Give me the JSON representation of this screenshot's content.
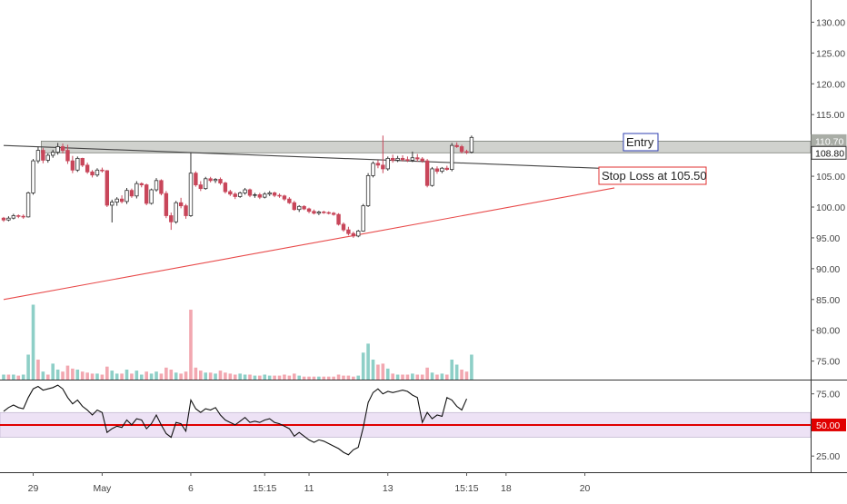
{
  "chart_data": {
    "type": "candlestick",
    "price_axis": {
      "ticks": [
        "130.00",
        "125.00",
        "120.00",
        "115.00",
        "110.00",
        "105.00",
        "100.00",
        "95.00",
        "90.00",
        "85.00",
        "80.00",
        "75.00"
      ],
      "tick_values": [
        130,
        125,
        120,
        115,
        110,
        105,
        100,
        95,
        90,
        85,
        80,
        75
      ],
      "range": [
        72.0,
        133.6
      ]
    },
    "time_axis": {
      "labels": [
        {
          "text": "29",
          "idx": 6
        },
        {
          "text": "May",
          "idx": 20
        },
        {
          "text": "6",
          "idx": 38
        },
        {
          "text": "15:15",
          "idx": 53
        },
        {
          "text": "11",
          "idx": 62
        },
        {
          "text": "13",
          "idx": 78
        },
        {
          "text": "15:15",
          "idx": 94
        },
        {
          "text": "18",
          "idx": 102
        },
        {
          "text": "20",
          "idx": 118
        }
      ]
    },
    "price_badges": [
      {
        "label": "110.70",
        "value": 110.7,
        "style": "gray"
      },
      {
        "label": "108.80",
        "value": 108.8,
        "style": "white"
      }
    ],
    "zone": {
      "low": 108.8,
      "high": 110.7
    },
    "annotations": [
      {
        "text": "Entry",
        "border_color": "#2f3fb0"
      },
      {
        "text": "Stop Loss at 105.50",
        "border_color": "#e03030"
      }
    ],
    "trendlines": [
      {
        "name": "resistance",
        "points": [
          [
            0,
            110.0
          ],
          [
            124,
            106.2
          ]
        ],
        "color": "#444444"
      },
      {
        "name": "support",
        "points": [
          [
            0,
            85.0
          ],
          [
            124,
            103.1
          ]
        ],
        "color": "#e84a4a"
      }
    ],
    "colors": {
      "up": "#ffffff",
      "down": "#c8465a",
      "up_volume": "#8ecfc7",
      "down_volume": "#f2a7b0",
      "rsi_band": "#ede2f5",
      "rsi_mid": "#e00000"
    },
    "candles": [
      [
        98.2,
        98.4,
        97.6,
        97.9
      ],
      [
        97.9,
        98.5,
        97.7,
        98.2
      ],
      [
        98.2,
        98.9,
        98.0,
        98.6
      ],
      [
        98.6,
        98.8,
        98.2,
        98.5
      ],
      [
        98.5,
        98.8,
        98.1,
        98.4
      ],
      [
        98.4,
        102.5,
        98.3,
        102.3
      ],
      [
        102.3,
        107.8,
        102.0,
        107.5
      ],
      [
        107.5,
        109.8,
        107.1,
        109.2
      ],
      [
        109.2,
        109.6,
        107.1,
        107.6
      ],
      [
        107.6,
        108.7,
        107.2,
        108.4
      ],
      [
        108.4,
        109.3,
        108.0,
        108.9
      ],
      [
        108.9,
        110.4,
        108.5,
        109.8
      ],
      [
        109.8,
        110.3,
        108.7,
        109.2
      ],
      [
        109.2,
        110.1,
        107.0,
        107.5
      ],
      [
        107.5,
        108.3,
        105.5,
        106.0
      ],
      [
        106.0,
        108.2,
        105.7,
        107.9
      ],
      [
        107.9,
        108.0,
        106.5,
        106.8
      ],
      [
        106.8,
        107.2,
        105.4,
        105.7
      ],
      [
        105.7,
        106.0,
        104.8,
        105.2
      ],
      [
        105.2,
        106.3,
        104.9,
        106.0
      ],
      [
        106.0,
        106.4,
        105.6,
        105.9
      ],
      [
        105.9,
        106.0,
        100.0,
        100.3
      ],
      [
        100.3,
        101.2,
        97.5,
        100.8
      ],
      [
        100.8,
        101.6,
        100.2,
        101.3
      ],
      [
        101.3,
        101.9,
        100.6,
        100.9
      ],
      [
        100.9,
        103.1,
        100.5,
        102.7
      ],
      [
        102.7,
        103.0,
        101.5,
        101.8
      ],
      [
        101.8,
        104.2,
        101.4,
        103.8
      ],
      [
        103.8,
        104.0,
        103.2,
        103.6
      ],
      [
        103.6,
        103.8,
        100.3,
        100.6
      ],
      [
        100.6,
        103.0,
        100.4,
        102.8
      ],
      [
        102.8,
        104.7,
        102.5,
        104.3
      ],
      [
        104.3,
        104.5,
        101.9,
        102.2
      ],
      [
        102.2,
        102.6,
        98.2,
        98.6
      ],
      [
        98.6,
        99.1,
        96.3,
        97.6
      ],
      [
        97.6,
        101.0,
        97.3,
        100.7
      ],
      [
        100.7,
        101.5,
        99.8,
        100.2
      ],
      [
        100.2,
        100.5,
        98.1,
        98.6
      ],
      [
        98.6,
        108.8,
        98.4,
        105.5
      ],
      [
        105.5,
        105.8,
        103.3,
        103.6
      ],
      [
        103.6,
        104.2,
        102.6,
        103.0
      ],
      [
        103.0,
        104.9,
        102.8,
        104.6
      ],
      [
        104.6,
        104.9,
        104.0,
        104.3
      ],
      [
        104.3,
        104.7,
        103.9,
        104.5
      ],
      [
        104.5,
        104.8,
        103.6,
        103.9
      ],
      [
        103.9,
        104.1,
        102.2,
        102.5
      ],
      [
        102.5,
        102.8,
        101.8,
        102.1
      ],
      [
        102.1,
        102.4,
        101.3,
        101.7
      ],
      [
        101.7,
        102.5,
        101.5,
        102.3
      ],
      [
        102.3,
        103.1,
        102.0,
        102.8
      ],
      [
        102.8,
        103.0,
        101.6,
        101.9
      ],
      [
        101.9,
        102.3,
        101.5,
        102.0
      ],
      [
        102.0,
        102.3,
        101.3,
        101.6
      ],
      [
        101.6,
        102.4,
        101.4,
        102.1
      ],
      [
        102.1,
        102.6,
        101.8,
        102.3
      ],
      [
        102.3,
        102.5,
        101.6,
        101.9
      ],
      [
        101.9,
        102.2,
        101.5,
        101.8
      ],
      [
        101.8,
        102.0,
        101.0,
        101.3
      ],
      [
        101.3,
        101.6,
        100.5,
        100.7
      ],
      [
        100.7,
        101.0,
        99.4,
        99.6
      ],
      [
        99.6,
        100.3,
        99.2,
        100.1
      ],
      [
        100.1,
        100.3,
        99.5,
        99.7
      ],
      [
        99.7,
        99.9,
        99.0,
        99.3
      ],
      [
        99.3,
        99.6,
        98.8,
        99.0
      ],
      [
        99.0,
        99.4,
        98.7,
        99.2
      ],
      [
        99.2,
        99.4,
        98.9,
        99.1
      ],
      [
        99.1,
        99.3,
        98.8,
        99.0
      ],
      [
        99.0,
        99.2,
        98.6,
        98.8
      ],
      [
        98.8,
        99.0,
        97.0,
        97.2
      ],
      [
        97.2,
        97.5,
        96.0,
        96.3
      ],
      [
        96.3,
        96.8,
        95.4,
        95.7
      ],
      [
        95.7,
        96.0,
        95.0,
        95.3
      ],
      [
        95.3,
        96.3,
        95.1,
        96.1
      ],
      [
        96.1,
        100.5,
        96.0,
        100.2
      ],
      [
        100.2,
        105.5,
        100.0,
        105.1
      ],
      [
        105.1,
        107.4,
        104.8,
        107.1
      ],
      [
        107.1,
        107.6,
        106.3,
        106.8
      ],
      [
        106.8,
        111.6,
        105.5,
        106.2
      ],
      [
        106.2,
        108.2,
        105.9,
        107.9
      ],
      [
        107.9,
        108.5,
        107.2,
        107.6
      ],
      [
        107.6,
        108.3,
        107.3,
        107.9
      ],
      [
        107.9,
        108.4,
        107.4,
        107.7
      ],
      [
        107.7,
        108.2,
        107.3,
        107.6
      ],
      [
        107.6,
        109.0,
        107.3,
        108.0
      ],
      [
        108.0,
        108.6,
        107.4,
        107.8
      ],
      [
        107.8,
        108.1,
        107.2,
        107.5
      ],
      [
        107.5,
        107.8,
        103.2,
        103.5
      ],
      [
        103.5,
        106.5,
        103.3,
        106.2
      ],
      [
        106.2,
        106.6,
        105.4,
        105.8
      ],
      [
        105.8,
        106.5,
        105.5,
        106.3
      ],
      [
        106.3,
        106.7,
        105.9,
        106.1
      ],
      [
        106.1,
        110.4,
        105.8,
        110.0
      ],
      [
        110.0,
        110.5,
        109.6,
        109.8
      ],
      [
        109.8,
        110.1,
        108.7,
        109.0
      ],
      [
        109.0,
        109.3,
        108.6,
        108.9
      ],
      [
        108.9,
        111.6,
        108.7,
        111.3
      ]
    ],
    "volume": [
      [
        0.05,
        1
      ],
      [
        0.05,
        0
      ],
      [
        0.05,
        1
      ],
      [
        0.04,
        0
      ],
      [
        0.05,
        1
      ],
      [
        0.25,
        1
      ],
      [
        0.75,
        1
      ],
      [
        0.2,
        0
      ],
      [
        0.08,
        1
      ],
      [
        0.05,
        0
      ],
      [
        0.16,
        1
      ],
      [
        0.1,
        1
      ],
      [
        0.08,
        0
      ],
      [
        0.14,
        0
      ],
      [
        0.11,
        0
      ],
      [
        0.1,
        1
      ],
      [
        0.08,
        0
      ],
      [
        0.07,
        0
      ],
      [
        0.06,
        0
      ],
      [
        0.06,
        1
      ],
      [
        0.05,
        0
      ],
      [
        0.13,
        0
      ],
      [
        0.09,
        1
      ],
      [
        0.06,
        1
      ],
      [
        0.06,
        0
      ],
      [
        0.1,
        1
      ],
      [
        0.06,
        0
      ],
      [
        0.09,
        1
      ],
      [
        0.05,
        1
      ],
      [
        0.08,
        0
      ],
      [
        0.06,
        1
      ],
      [
        0.08,
        1
      ],
      [
        0.06,
        0
      ],
      [
        0.12,
        0
      ],
      [
        0.1,
        0
      ],
      [
        0.07,
        1
      ],
      [
        0.06,
        0
      ],
      [
        0.08,
        0
      ],
      [
        0.7,
        0
      ],
      [
        0.12,
        0
      ],
      [
        0.09,
        0
      ],
      [
        0.07,
        1
      ],
      [
        0.07,
        0
      ],
      [
        0.06,
        1
      ],
      [
        0.09,
        0
      ],
      [
        0.07,
        0
      ],
      [
        0.06,
        0
      ],
      [
        0.05,
        0
      ],
      [
        0.06,
        1
      ],
      [
        0.05,
        1
      ],
      [
        0.05,
        0
      ],
      [
        0.04,
        1
      ],
      [
        0.04,
        0
      ],
      [
        0.05,
        1
      ],
      [
        0.04,
        1
      ],
      [
        0.04,
        0
      ],
      [
        0.04,
        0
      ],
      [
        0.05,
        0
      ],
      [
        0.04,
        0
      ],
      [
        0.06,
        0
      ],
      [
        0.04,
        1
      ],
      [
        0.03,
        0
      ],
      [
        0.03,
        0
      ],
      [
        0.03,
        0
      ],
      [
        0.03,
        1
      ],
      [
        0.03,
        0
      ],
      [
        0.03,
        0
      ],
      [
        0.03,
        0
      ],
      [
        0.05,
        0
      ],
      [
        0.04,
        0
      ],
      [
        0.04,
        0
      ],
      [
        0.03,
        0
      ],
      [
        0.04,
        1
      ],
      [
        0.27,
        1
      ],
      [
        0.36,
        1
      ],
      [
        0.2,
        1
      ],
      [
        0.15,
        0
      ],
      [
        0.16,
        0
      ],
      [
        0.11,
        1
      ],
      [
        0.06,
        0
      ],
      [
        0.05,
        1
      ],
      [
        0.05,
        0
      ],
      [
        0.05,
        0
      ],
      [
        0.06,
        1
      ],
      [
        0.05,
        0
      ],
      [
        0.05,
        0
      ],
      [
        0.12,
        0
      ],
      [
        0.07,
        1
      ],
      [
        0.05,
        0
      ],
      [
        0.06,
        1
      ],
      [
        0.05,
        0
      ],
      [
        0.2,
        1
      ],
      [
        0.15,
        1
      ],
      [
        0.1,
        0
      ],
      [
        0.08,
        0
      ],
      [
        0.25,
        1
      ]
    ],
    "rsi": {
      "ticks": [
        "75.00",
        "50.00",
        "25.00"
      ],
      "tick_values": [
        75,
        50,
        25
      ],
      "range": [
        12,
        85
      ],
      "band": [
        40,
        60
      ],
      "midline": 50,
      "values": [
        61,
        64,
        66,
        64,
        63,
        72,
        79,
        81,
        78,
        79,
        80,
        82,
        79,
        72,
        67,
        70,
        65,
        62,
        58,
        62,
        60,
        44,
        47,
        49,
        48,
        54,
        50,
        55,
        54,
        47,
        51,
        58,
        50,
        43,
        40,
        52,
        51,
        45,
        70,
        63,
        60,
        63,
        62,
        64,
        58,
        54,
        52,
        50,
        53,
        56,
        52,
        53,
        52,
        54,
        55,
        52,
        51,
        49,
        47,
        41,
        44,
        41,
        38,
        36,
        38,
        37,
        35,
        33,
        31,
        28,
        26,
        30,
        32,
        48,
        68,
        76,
        79,
        75,
        77,
        76,
        77,
        78,
        77,
        74,
        72,
        52,
        60,
        55,
        58,
        57,
        72,
        70,
        65,
        62,
        71
      ]
    }
  }
}
